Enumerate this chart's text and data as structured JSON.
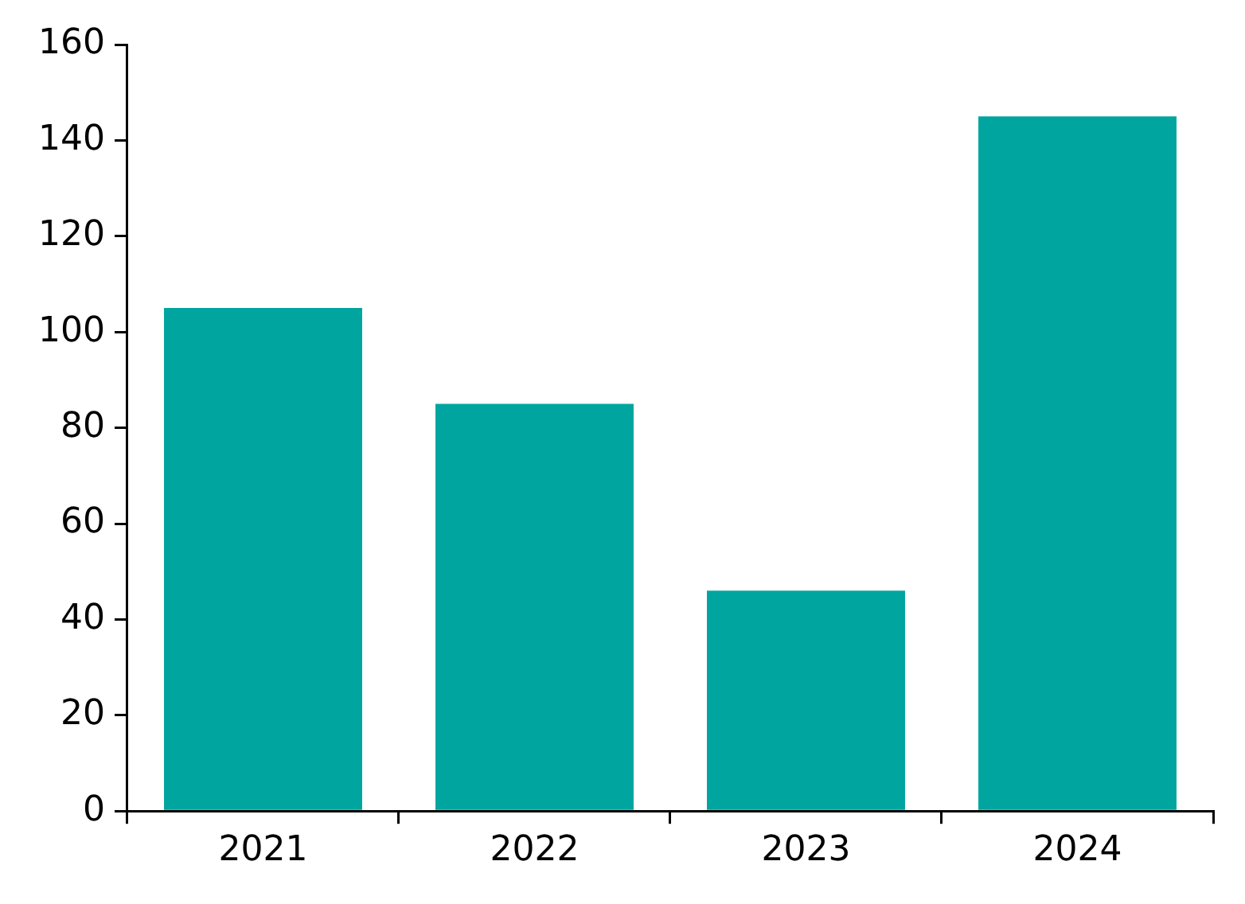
{
  "chart_data": {
    "type": "bar",
    "categories": [
      "2021",
      "2022",
      "2023",
      "2024"
    ],
    "values": [
      105,
      85,
      46,
      145
    ],
    "color": "#00a59f",
    "ylim": [
      0,
      160
    ],
    "yticks": [
      0,
      20,
      40,
      60,
      80,
      100,
      120,
      140,
      160
    ]
  }
}
